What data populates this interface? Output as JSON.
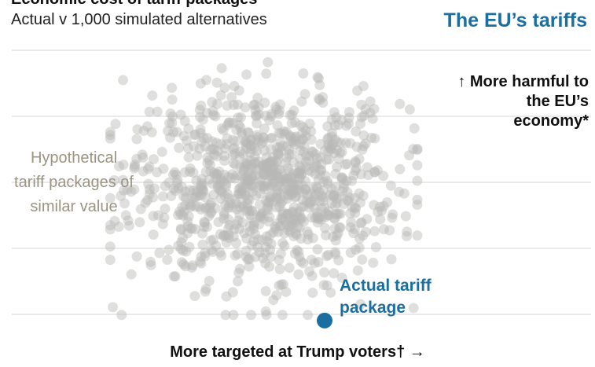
{
  "header": {
    "title_cut": "Economic cost of tariff packages",
    "subtitle": "Actual v 1,000 simulated alternatives",
    "panel_title": "The EU’s tariffs"
  },
  "annotations": {
    "harm": "↑ More harmful to the EU’s economy*",
    "hypothetical": "Hypothetical tariff packages of similar value",
    "actual": "Actual tariff package"
  },
  "colors": {
    "simulated": "#b9b9b6",
    "actual": "#1a6fa0",
    "gridline": "#d4d4d4",
    "hypothetical_label": "#9b9482"
  },
  "chart_data": {
    "type": "scatter",
    "xlabel": "More targeted at Trump voters† →",
    "ylabel": "↑ More harmful to the EU’s economy*",
    "grid": true,
    "series": [
      {
        "name": "Hypothetical tariff packages of similar value",
        "count": 1000
      },
      {
        "name": "Actual tariff package",
        "points": [
          {
            "x": 0.54,
            "y": 0.02
          }
        ]
      }
    ]
  }
}
